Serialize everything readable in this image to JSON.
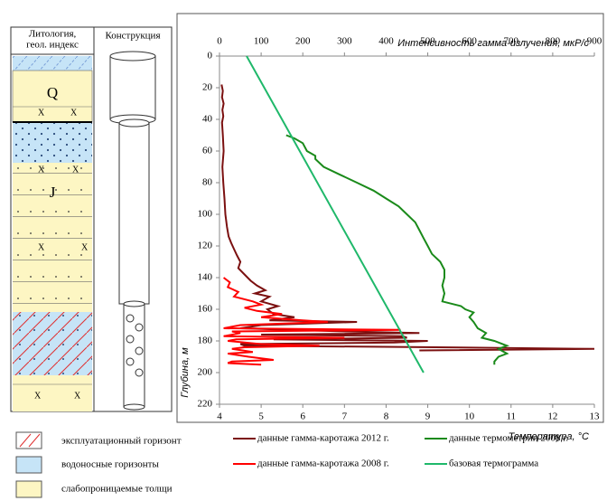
{
  "lithology": {
    "header": [
      "Литология,",
      "геол. индекс"
    ],
    "construction_header": "Конструкция",
    "index_labels": [
      "Q",
      "J"
    ]
  },
  "legend_items": [
    "эксплуатационный горизонт",
    "водоносные горизонты",
    "слабопроницаемые толщи"
  ],
  "chart_data": {
    "type": "line",
    "x_title": "Интенсивность гамма-излучения, мкР/с",
    "x2_title": "Температура, °С",
    "y_title": "Глубина, м",
    "xlim": [
      0,
      900
    ],
    "xticks": [
      0,
      100,
      200,
      300,
      400,
      500,
      600,
      700,
      800,
      900
    ],
    "x2lim": [
      4,
      13
    ],
    "x2ticks": [
      4,
      5,
      6,
      7,
      8,
      9,
      10,
      11,
      12,
      13
    ],
    "ylim": [
      220,
      0
    ],
    "yticks": [
      0,
      20,
      40,
      60,
      80,
      100,
      120,
      140,
      160,
      180,
      200,
      220
    ],
    "series": [
      {
        "name": "данные гамма-каротажа 2012 г.",
        "color": "#7b1010",
        "axis": "x",
        "depth": [
          18,
          22,
          26,
          30,
          34,
          38,
          42,
          50,
          60,
          70,
          80,
          90,
          100,
          108,
          114,
          118,
          122,
          126,
          130,
          134,
          138,
          142,
          145,
          148,
          150,
          152,
          155,
          158,
          160,
          163,
          165,
          167,
          168,
          170,
          172,
          174,
          175,
          176,
          177,
          178,
          179,
          180,
          181,
          182,
          183,
          184,
          185,
          186
        ],
        "values": [
          5,
          8,
          6,
          10,
          7,
          9,
          6,
          8,
          10,
          7,
          9,
          12,
          14,
          18,
          22,
          28,
          35,
          42,
          50,
          45,
          60,
          75,
          90,
          110,
          85,
          120,
          100,
          140,
          115,
          130,
          180,
          120,
          330,
          100,
          50,
          300,
          480,
          100,
          440,
          450,
          130,
          500,
          420,
          50,
          60,
          520,
          900,
          480
        ]
      },
      {
        "name": "данные гамма-каротажа 2008 г.",
        "color": "#ff0000",
        "axis": "x",
        "depth": [
          140,
          143,
          146,
          149,
          152,
          155,
          157,
          159,
          161,
          163,
          165,
          167,
          168,
          170,
          172,
          173,
          174,
          175,
          177,
          178,
          179,
          180,
          182,
          183,
          184,
          185,
          187,
          188,
          190,
          192,
          193,
          194,
          195
        ],
        "values": [
          10,
          25,
          20,
          45,
          35,
          80,
          100,
          60,
          90,
          150,
          100,
          200,
          260,
          50,
          10,
          435,
          30,
          50,
          10,
          300,
          40,
          20,
          100,
          240,
          60,
          30,
          80,
          20,
          70,
          130,
          30,
          20,
          100
        ]
      },
      {
        "name": "данные термометрии 2008 г.",
        "color": "#1a8a1a",
        "axis": "x2",
        "depth": [
          50,
          52,
          55,
          60,
          63,
          65,
          70,
          75,
          80,
          85,
          90,
          95,
          100,
          105,
          110,
          115,
          120,
          125,
          130,
          135,
          140,
          145,
          150,
          155,
          158,
          160,
          162,
          165,
          168,
          172,
          175,
          178,
          180,
          183,
          185,
          188,
          190,
          193,
          195
        ],
        "values": [
          5.6,
          5.8,
          6.0,
          6.1,
          6.3,
          6.3,
          6.5,
          6.9,
          7.3,
          7.7,
          8.0,
          8.3,
          8.5,
          8.7,
          8.8,
          8.9,
          9.0,
          9.1,
          9.3,
          9.4,
          9.4,
          9.35,
          9.4,
          9.35,
          9.8,
          9.9,
          10.1,
          10.0,
          10.1,
          10.2,
          10.4,
          10.3,
          10.6,
          10.9,
          10.7,
          10.9,
          10.7,
          10.6,
          10.6
        ]
      },
      {
        "name": "базовая термограмма",
        "color": "#1fb86a",
        "axis": "x2",
        "depth": [
          0,
          200
        ],
        "values": [
          4.65,
          8.9
        ]
      }
    ]
  }
}
